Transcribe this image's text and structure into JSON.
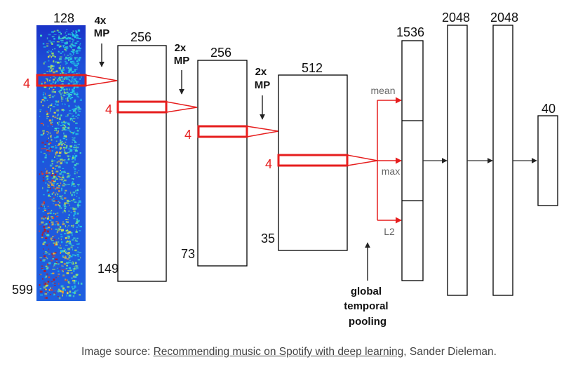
{
  "spectrogram": {
    "width_label": "128",
    "height_label": "599",
    "window_label": "4"
  },
  "conv_layers": [
    {
      "width_label": "256",
      "height_label": "149",
      "window_label": "4",
      "pool_label": "4x\nMP"
    },
    {
      "width_label": "256",
      "height_label": "73",
      "window_label": "4",
      "pool_label": "2x\nMP"
    },
    {
      "width_label": "512",
      "height_label": "35",
      "window_label": "4",
      "pool_label": "2x\nMP"
    }
  ],
  "pooling": {
    "branches": [
      "mean",
      "max",
      "L2"
    ],
    "label_lines": [
      "global",
      "temporal",
      "pooling"
    ]
  },
  "dense_layers": [
    {
      "label": "1536"
    },
    {
      "label": "2048"
    },
    {
      "label": "2048"
    },
    {
      "label": "40"
    }
  ],
  "colors": {
    "highlight": "#e61e1e",
    "outline": "#000000",
    "connector_arrow": "#333333",
    "caption_text": "#444444"
  },
  "caption": {
    "prefix": "Image source: ",
    "link_text": "Recommending music on Spotify with deep learning",
    "suffix": ", Sander Dieleman."
  }
}
